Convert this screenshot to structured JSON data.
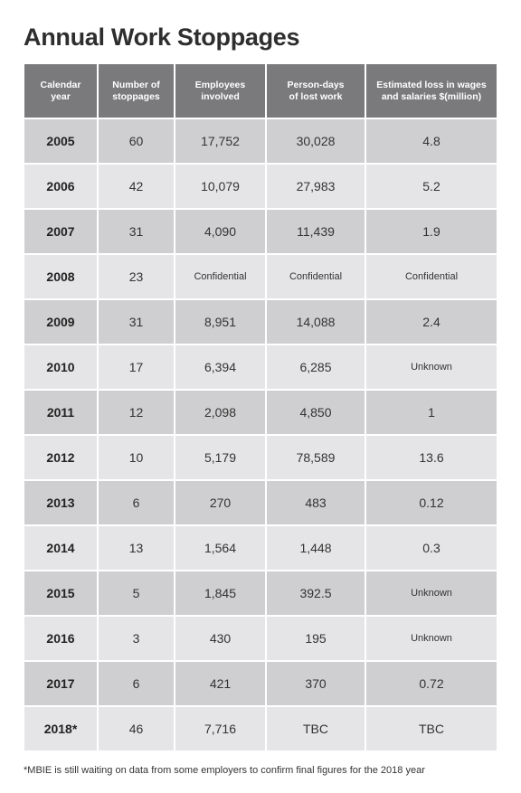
{
  "title": "Annual Work Stoppages",
  "footnote": "*MBIE is still waiting on data from some employers to confirm final figures for the 2018 year",
  "chart_data": {
    "type": "table",
    "title": "Annual Work Stoppages",
    "columns": [
      "Calendar\nyear",
      "Number of\nstoppages",
      "Employees\ninvolved",
      "Person-days\nof lost work",
      "Estimated loss in wages\nand salaries $(million)"
    ],
    "rows": [
      [
        "2005",
        "60",
        "17,752",
        "30,028",
        "4.8"
      ],
      [
        "2006",
        "42",
        "10,079",
        "27,983",
        "5.2"
      ],
      [
        "2007",
        "31",
        "4,090",
        "11,439",
        "1.9"
      ],
      [
        "2008",
        "23",
        "Confidential",
        "Confidential",
        "Confidential"
      ],
      [
        "2009",
        "31",
        "8,951",
        "14,088",
        "2.4"
      ],
      [
        "2010",
        "17",
        "6,394",
        "6,285",
        "Unknown"
      ],
      [
        "2011",
        "12",
        "2,098",
        "4,850",
        "1"
      ],
      [
        "2012",
        "10",
        "5,179",
        "78,589",
        "13.6"
      ],
      [
        "2013",
        "6",
        "270",
        "483",
        "0.12"
      ],
      [
        "2014",
        "13",
        "1,564",
        "1,448",
        "0.3"
      ],
      [
        "2015",
        "5",
        "1,845",
        "392.5",
        "Unknown"
      ],
      [
        "2016",
        "3",
        "430",
        "195",
        "Unknown"
      ],
      [
        "2017",
        "6",
        "421",
        "370",
        "0.72"
      ],
      [
        "2018*",
        "46",
        "7,716",
        "TBC",
        "TBC"
      ]
    ]
  }
}
